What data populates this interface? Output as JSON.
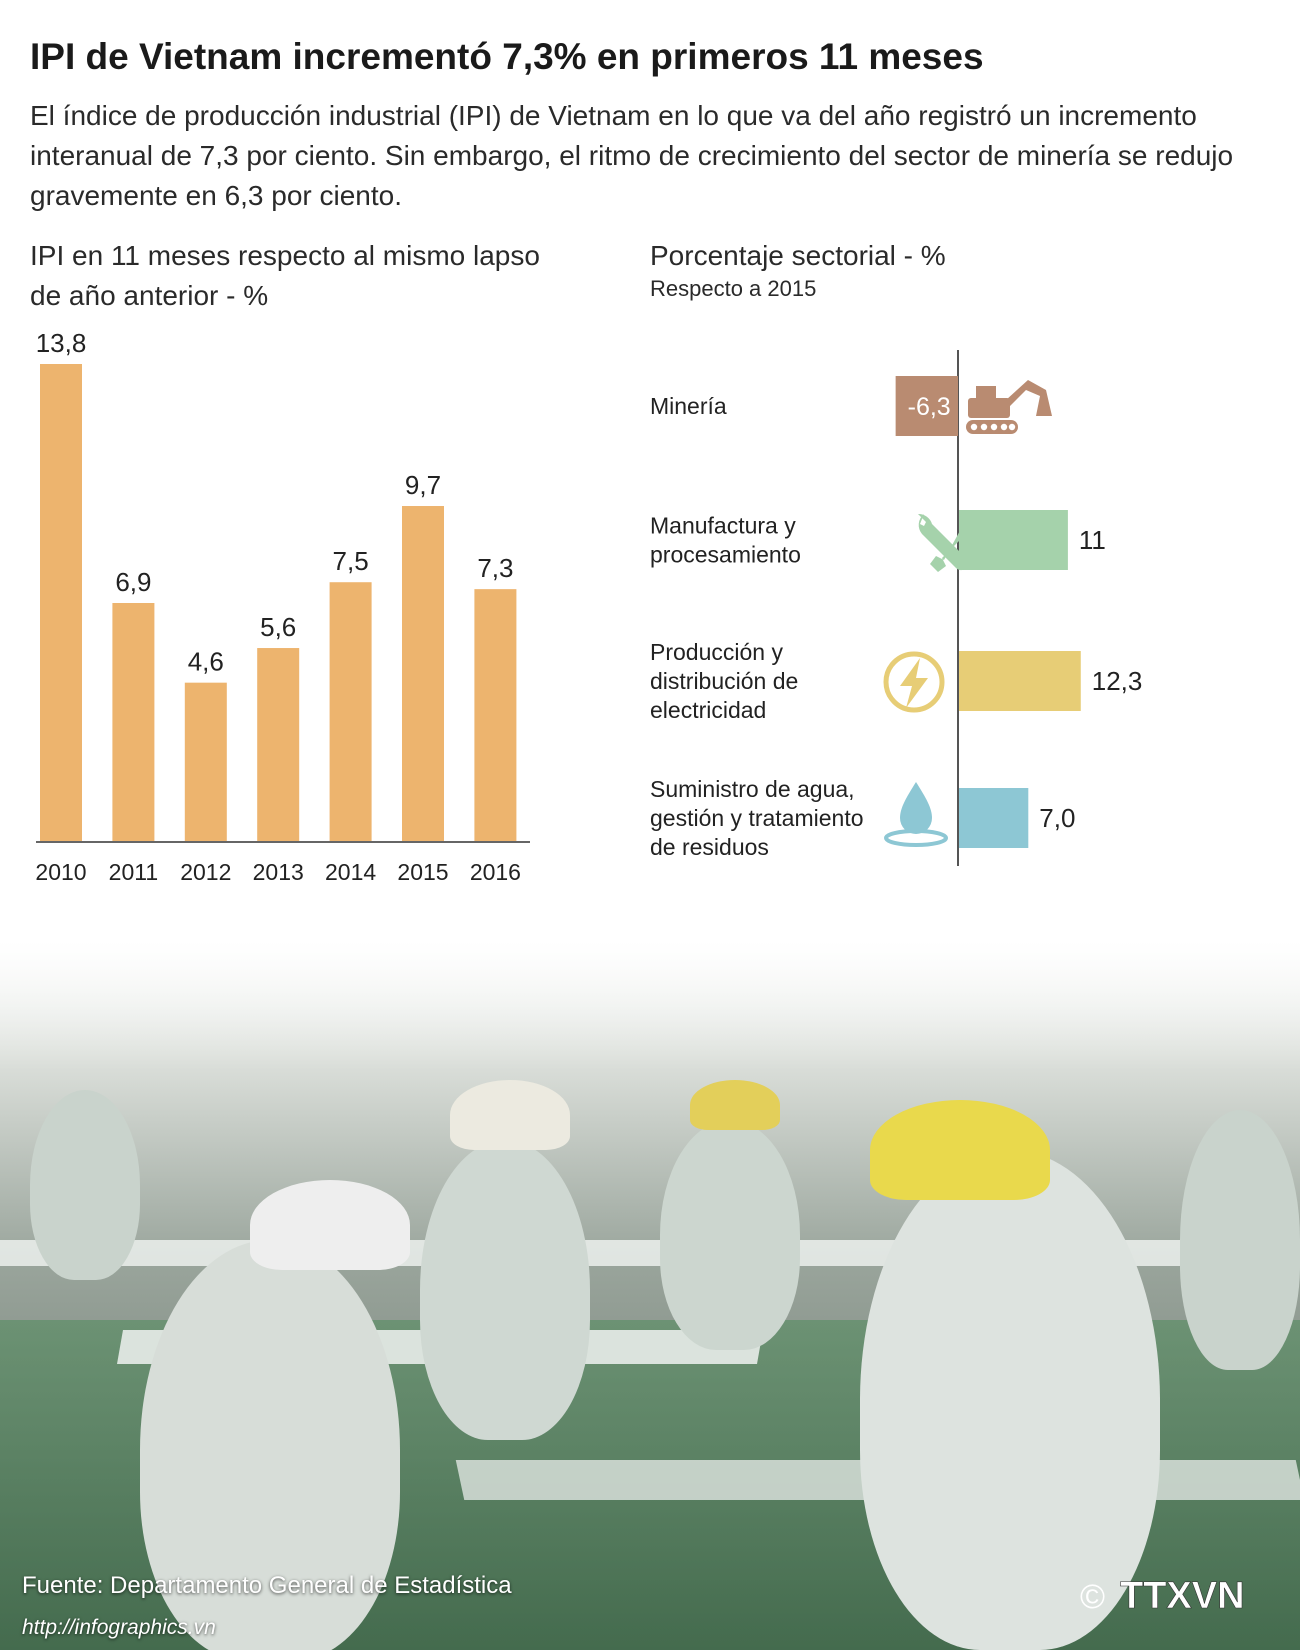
{
  "title": "IPI de Vietnam incrementó 7,3% en primeros 11 meses",
  "subtitle": "El índice de producción industrial (IPI) de Vietnam en lo que va del año registró un incremento interanual de 7,3 por ciento. Sin embargo, el ritmo de crecimiento del sector de minería se redujo gravemente en 6,3 por ciento.",
  "source": "Fuente: Departamento General de Estadística",
  "url": "http://infographics.vn",
  "copyright_symbol": "©",
  "logo_text": "TTXVN",
  "chart_data": [
    {
      "type": "bar",
      "title": "IPI en 11 meses respecto al mismo lapso de año anterior - %",
      "categories": [
        "2010",
        "2011",
        "2012",
        "2013",
        "2014",
        "2015",
        "2016"
      ],
      "values": [
        13.8,
        6.9,
        4.6,
        5.6,
        7.5,
        9.7,
        7.3
      ],
      "value_labels": [
        "13,8",
        "6,9",
        "4,6",
        "5,6",
        "7,5",
        "9,7",
        "7,3"
      ],
      "ylim": [
        0,
        13.8
      ],
      "color": "#edb46e",
      "grid": false
    },
    {
      "type": "bar",
      "orientation": "horizontal",
      "title": "Porcentaje sectorial - %",
      "subtitle": "Respecto a 2015",
      "categories": [
        "Minería",
        "Manufactura y procesamiento",
        "Producción y distribución de electricidad",
        "Suministro de agua, gestión y tratamiento de residuos"
      ],
      "category_lines": [
        [
          "Minería"
        ],
        [
          "Manufactura y",
          "procesamiento"
        ],
        [
          "Producción y",
          "distribución de",
          "electricidad"
        ],
        [
          "Suministro de agua,",
          "gestión y tratamiento",
          "de residuos"
        ]
      ],
      "values": [
        -6.3,
        11,
        12.3,
        7.0
      ],
      "value_labels": [
        "-6,3",
        "11",
        "12,3",
        "7,0"
      ],
      "colors": [
        "#b98b71",
        "#a5d2ab",
        "#e7cd76",
        "#8dc7d4"
      ],
      "icons": [
        "excavator-icon",
        "wrench-screwdriver-icon",
        "lightning-bolt-icon",
        "water-drop-icon"
      ],
      "grid": false
    }
  ]
}
